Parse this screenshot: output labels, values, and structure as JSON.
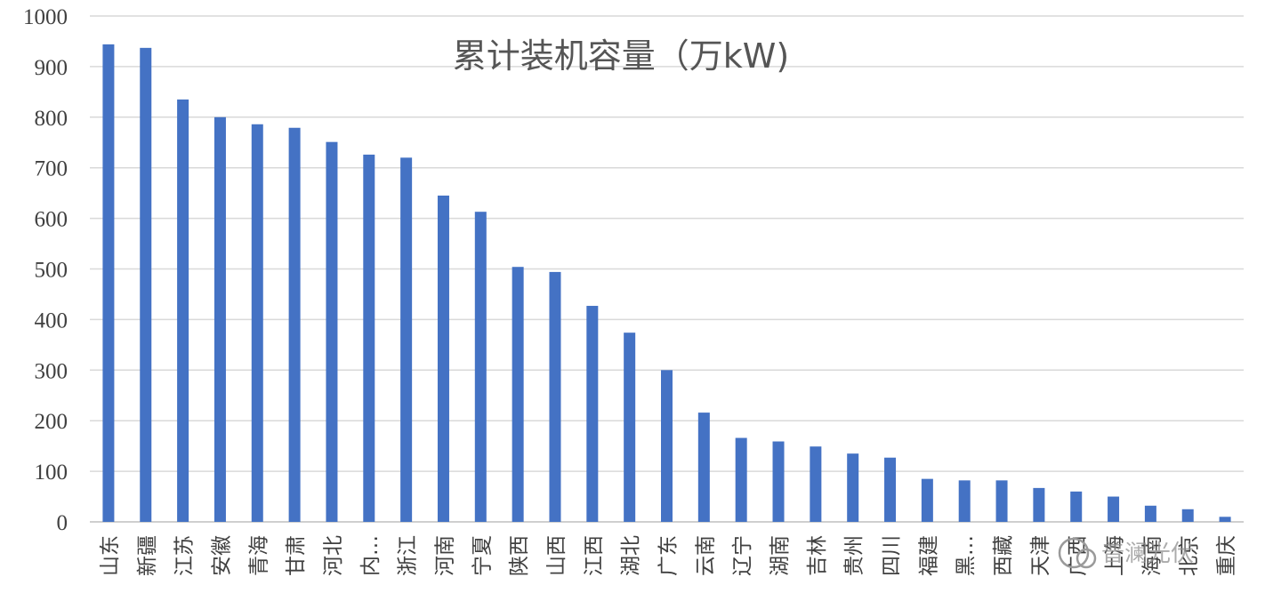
{
  "chart_data": {
    "type": "bar",
    "title": "累计装机容量（万kW)",
    "xlabel": "",
    "ylabel": "",
    "ylim": [
      0,
      1000
    ],
    "yticks": [
      "0",
      "100",
      "200",
      "300",
      "400",
      "500",
      "600",
      "700",
      "800",
      "900",
      "1000"
    ],
    "grid": true,
    "color": "#4472c4",
    "categories": [
      "山东",
      "新疆",
      "江苏",
      "安徽",
      "青海",
      "甘肃",
      "河北",
      "内…",
      "浙江",
      "河南",
      "宁夏",
      "陕西",
      "山西",
      "江西",
      "湖北",
      "广东",
      "云南",
      "辽宁",
      "湖南",
      "吉林",
      "贵州",
      "四川",
      "福建",
      "黑…",
      "西藏",
      "天津",
      "广西",
      "上海",
      "海南",
      "北京",
      "重庆"
    ],
    "values": [
      944,
      937,
      835,
      800,
      786,
      779,
      751,
      726,
      720,
      645,
      613,
      504,
      494,
      427,
      374,
      300,
      216,
      166,
      159,
      149,
      135,
      127,
      85,
      82,
      82,
      67,
      60,
      50,
      32,
      25,
      10
    ]
  },
  "watermark": {
    "text": "普澜光伏"
  }
}
